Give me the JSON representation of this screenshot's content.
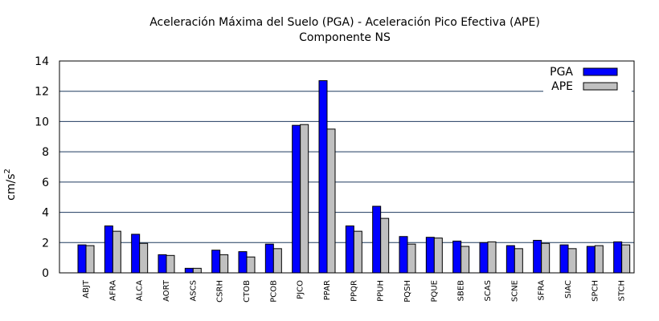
{
  "chart_data": {
    "type": "bar",
    "title": "Aceleración Máxima del Suelo (PGA) -   Aceleración Pico Efectiva (APE)",
    "subtitle": "Componente NS",
    "ylabel": "cm/s",
    "ylabel_sup": "2",
    "xlabel": "",
    "ylim": [
      0,
      14
    ],
    "yticks": [
      "0",
      "2",
      "4",
      "6",
      "8",
      "10",
      "12",
      "14"
    ],
    "grid": "horizontal",
    "legend_position": "top-right",
    "categories": [
      "ABJT",
      "AFRA",
      "ALCA",
      "AORT",
      "ASCS",
      "CSRH",
      "CTOB",
      "PCOB",
      "PJCO",
      "PPAR",
      "PPQR",
      "PPUH",
      "PQSH",
      "PQUE",
      "SBEB",
      "SCAS",
      "SCNE",
      "SFRA",
      "SIAC",
      "SPCH",
      "STCH"
    ],
    "series": [
      {
        "name": "PGA",
        "color": "#0000ff",
        "values": [
          1.85,
          3.1,
          2.55,
          1.2,
          0.3,
          1.5,
          1.4,
          1.9,
          9.75,
          12.7,
          3.1,
          4.4,
          2.4,
          2.35,
          2.1,
          2.0,
          1.8,
          2.15,
          1.85,
          1.75,
          2.05
        ]
      },
      {
        "name": "APE",
        "color": "#c0c0c0",
        "values": [
          1.8,
          2.75,
          1.95,
          1.15,
          0.3,
          1.2,
          1.05,
          1.6,
          9.8,
          9.5,
          2.75,
          3.6,
          1.9,
          2.3,
          1.75,
          2.05,
          1.6,
          1.95,
          1.6,
          1.8,
          1.85
        ]
      }
    ]
  }
}
